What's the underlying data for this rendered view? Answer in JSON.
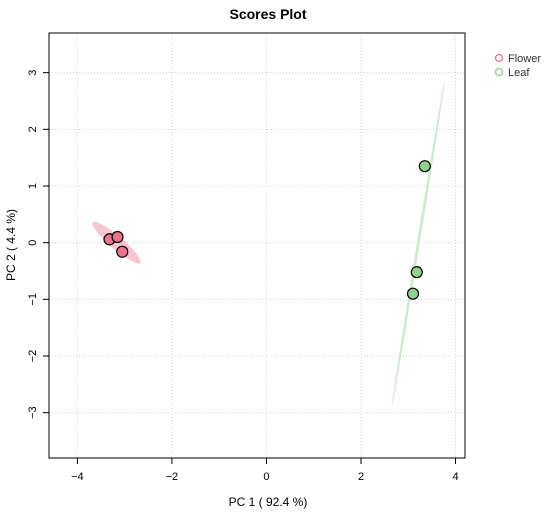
{
  "chart_data": {
    "type": "scatter",
    "title": "Scores Plot",
    "xlabel": "PC 1 ( 92.4 %)",
    "ylabel": "PC 2 ( 4.4 %)",
    "xlim": [
      -4.6,
      4.2
    ],
    "ylim": [
      -3.8,
      3.7
    ],
    "x_ticks": [
      -4,
      -2,
      0,
      2,
      4
    ],
    "y_ticks": [
      -3,
      -2,
      -1,
      0,
      1,
      2,
      3
    ],
    "x_tick_labels": [
      "−4",
      "−2",
      "0",
      "2",
      "4"
    ],
    "y_tick_labels": [
      "−3",
      "−2",
      "−1",
      "0",
      "1",
      "2",
      "3"
    ],
    "grid": true,
    "legend_position": "top-right",
    "series": [
      {
        "name": "Flower",
        "color": "#e8738f",
        "ellipse_color": "#f4b6c6",
        "points": [
          {
            "x": -3.32,
            "y": 0.06
          },
          {
            "x": -3.15,
            "y": 0.1
          },
          {
            "x": -3.05,
            "y": -0.16
          }
        ],
        "ellipse": {
          "cx": -3.17,
          "cy": 0.0,
          "semi_major": 0.62,
          "semi_minor": 0.12,
          "angle_deg": -35
        }
      },
      {
        "name": "Leaf",
        "color": "#8fd18f",
        "ellipse_color": "#c3e6c3",
        "points": [
          {
            "x": 3.35,
            "y": 1.35
          },
          {
            "x": 3.18,
            "y": -0.52
          },
          {
            "x": 3.1,
            "y": -0.9
          }
        ],
        "ellipse": {
          "cx": 3.21,
          "cy": -0.02,
          "semi_major": 2.95,
          "semi_minor": 0.03,
          "angle_deg": 79
        }
      }
    ]
  }
}
